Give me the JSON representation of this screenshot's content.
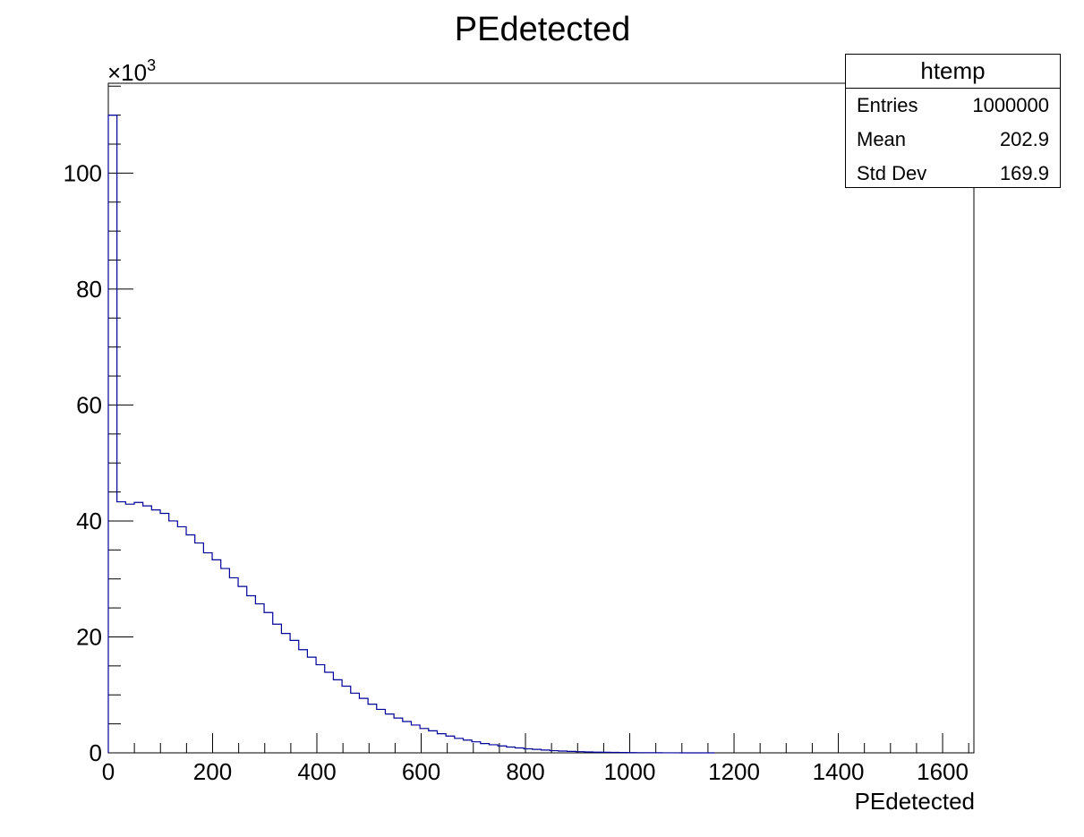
{
  "chart_data": {
    "type": "histogram",
    "title": "PEdetected",
    "xlabel": "PEdetected",
    "ylabel": "",
    "xlim": [
      0,
      1660
    ],
    "ylim": [
      0,
      115500
    ],
    "y_multiplier_label": "×10",
    "y_multiplier_exponent": "3",
    "x_ticks": [
      0,
      200,
      400,
      600,
      800,
      1000,
      1200,
      1400,
      1600
    ],
    "x_tick_labels": [
      "0",
      "200",
      "400",
      "600",
      "800",
      "1000",
      "1200",
      "1400",
      "1600"
    ],
    "y_ticks": [
      0,
      20000,
      40000,
      60000,
      80000,
      100000
    ],
    "y_tick_labels": [
      "0",
      "20",
      "40",
      "60",
      "80",
      "100"
    ],
    "bin_width": 16.6,
    "bin_edges_start": 0,
    "values": [
      110000,
      43300,
      42900,
      43200,
      42600,
      41900,
      41300,
      40000,
      39000,
      37600,
      36200,
      34500,
      33300,
      31800,
      30200,
      28700,
      27100,
      25700,
      24200,
      22200,
      20600,
      19400,
      17800,
      16500,
      15200,
      13900,
      12600,
      11500,
      10300,
      9400,
      8400,
      7500,
      6700,
      6000,
      5400,
      4800,
      4200,
      3800,
      3300,
      2900,
      2500,
      2200,
      1900,
      1600,
      1400,
      1200,
      1000,
      850,
      700,
      600,
      480,
      380,
      310,
      250,
      200,
      160,
      120,
      95,
      75,
      55,
      40,
      30,
      22,
      15,
      10,
      7,
      5,
      3,
      2,
      1
    ],
    "line_color": "#000099",
    "stats_box": {
      "title": "htemp",
      "entries_label": "Entries",
      "entries_value": "1000000",
      "mean_label": "Mean",
      "mean_value": "202.9",
      "stddev_label": "Std Dev",
      "stddev_value": "169.9",
      "position": "top-right"
    }
  }
}
